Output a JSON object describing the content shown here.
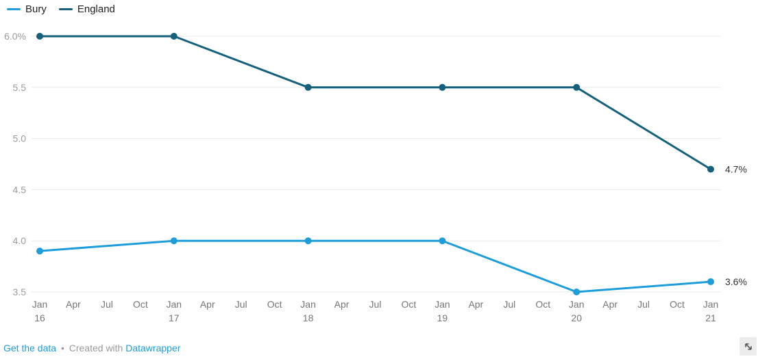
{
  "chart_data": {
    "type": "line",
    "x": [
      "Jan 16",
      "Jan 17",
      "Jan 18",
      "Jan 19",
      "Jan 20",
      "Jan 21"
    ],
    "series": [
      {
        "name": "Bury",
        "color": "#1d9dd9",
        "values": [
          3.9,
          4.0,
          4.0,
          4.0,
          3.5,
          3.6
        ],
        "end_label": "3.6%"
      },
      {
        "name": "England",
        "color": "#15607a",
        "values": [
          6.0,
          6.0,
          5.5,
          5.5,
          5.5,
          4.7
        ],
        "end_label": "4.7%"
      }
    ],
    "ylim": [
      3.5,
      6.0
    ],
    "ylabel": "",
    "xlabel": "",
    "grid": true,
    "legend_position": "top-left",
    "y_ticks": [
      {
        "value": 6.0,
        "label": "6.0%"
      },
      {
        "value": 5.5,
        "label": "5.5"
      },
      {
        "value": 5.0,
        "label": "5.0"
      },
      {
        "value": 4.5,
        "label": "4.5"
      },
      {
        "value": 4.0,
        "label": "4.0"
      },
      {
        "value": 3.5,
        "label": "3.5"
      }
    ],
    "x_ticks": [
      {
        "label": "Jan",
        "sub": "16"
      },
      {
        "label": "Apr",
        "sub": ""
      },
      {
        "label": "Jul",
        "sub": ""
      },
      {
        "label": "Oct",
        "sub": ""
      },
      {
        "label": "Jan",
        "sub": "17"
      },
      {
        "label": "Apr",
        "sub": ""
      },
      {
        "label": "Jul",
        "sub": ""
      },
      {
        "label": "Oct",
        "sub": ""
      },
      {
        "label": "Jan",
        "sub": "18"
      },
      {
        "label": "Apr",
        "sub": ""
      },
      {
        "label": "Jul",
        "sub": ""
      },
      {
        "label": "Oct",
        "sub": ""
      },
      {
        "label": "Jan",
        "sub": "19"
      },
      {
        "label": "Apr",
        "sub": ""
      },
      {
        "label": "Jul",
        "sub": ""
      },
      {
        "label": "Oct",
        "sub": ""
      },
      {
        "label": "Jan",
        "sub": "20"
      },
      {
        "label": "Apr",
        "sub": ""
      },
      {
        "label": "Jul",
        "sub": ""
      },
      {
        "label": "Oct",
        "sub": ""
      },
      {
        "label": "Jan",
        "sub": "21"
      }
    ]
  },
  "colors": {
    "grid": "#e8e8e8",
    "link": "#1d9bd9"
  },
  "footer": {
    "get_data_label": "Get the data",
    "separator": "•",
    "created_with": "Created with",
    "tool_name": "Datawrapper"
  }
}
